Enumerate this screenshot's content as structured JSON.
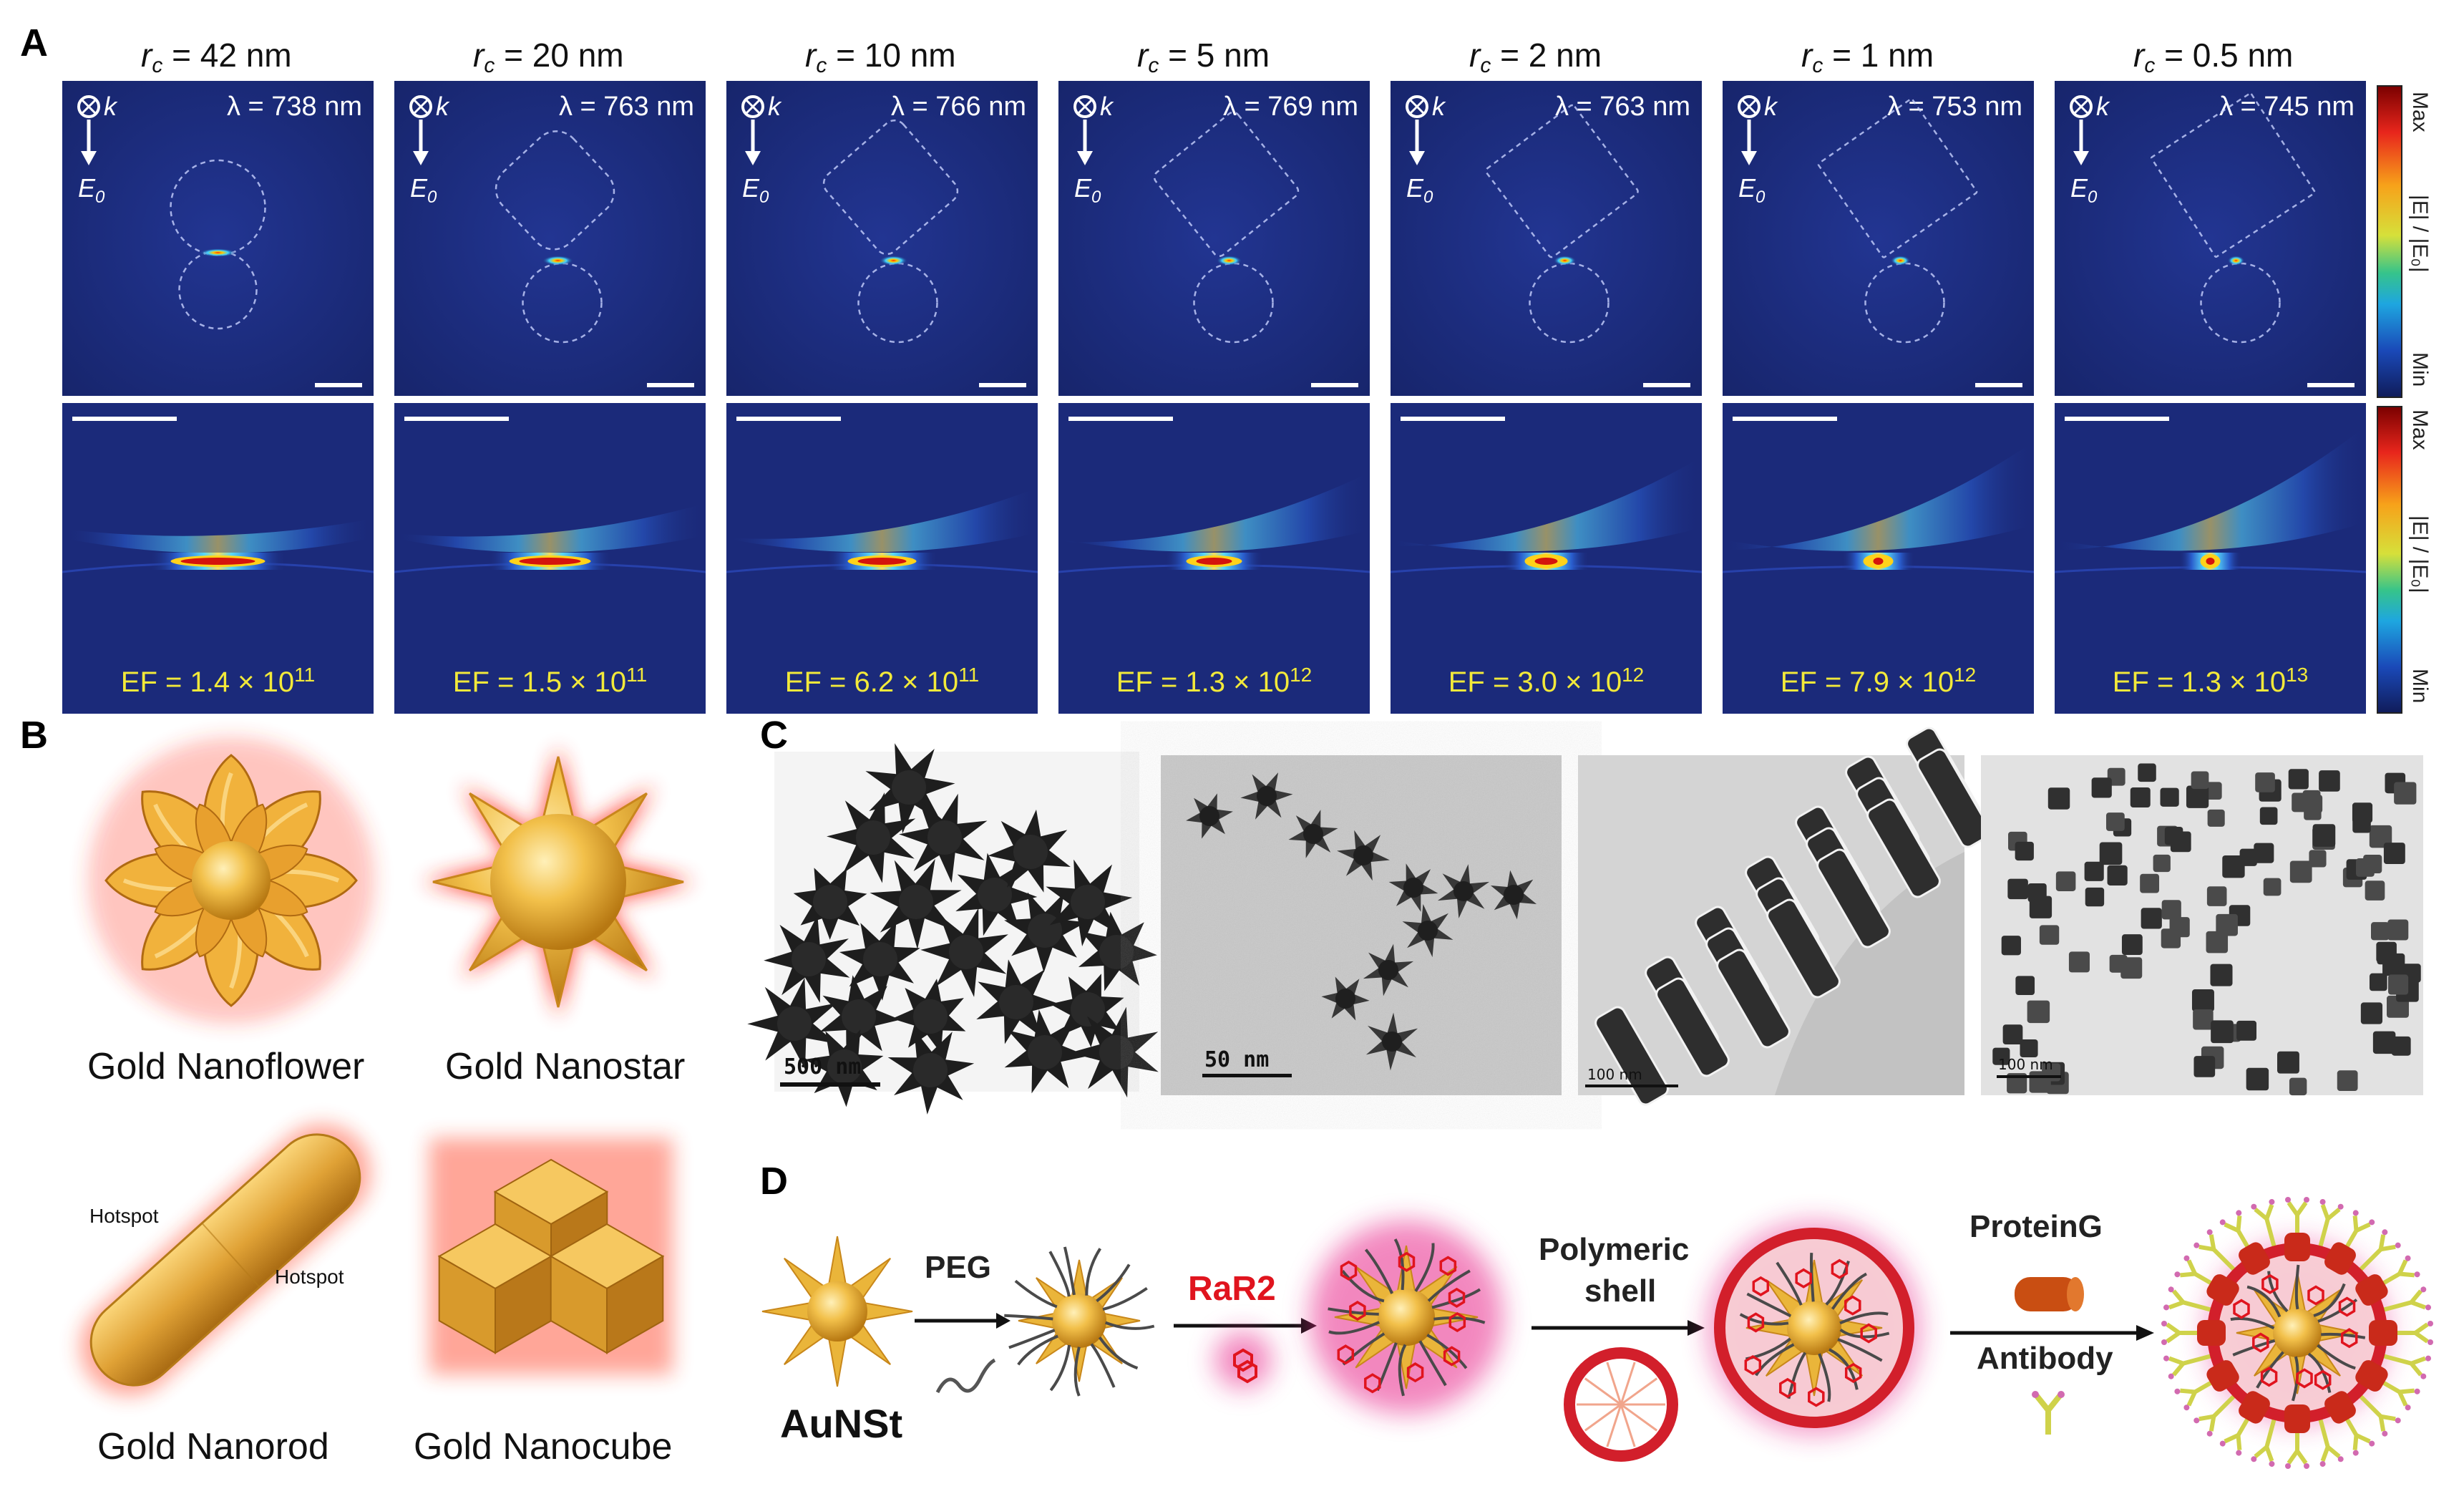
{
  "panels": {
    "a": "A",
    "b": "B",
    "c": "C",
    "d": "D"
  },
  "panel_a": {
    "columns": [
      {
        "rc_value": "= 42 nm",
        "wavelength": "λ = 738 nm",
        "ef_base": "EF = 1.4 × 10",
        "ef_exp": "11"
      },
      {
        "rc_value": "= 20 nm",
        "wavelength": "λ = 763 nm",
        "ef_base": "EF = 1.5 × 10",
        "ef_exp": "11"
      },
      {
        "rc_value": "= 10 nm",
        "wavelength": "λ = 766 nm",
        "ef_base": "EF = 6.2 × 10",
        "ef_exp": "11"
      },
      {
        "rc_value": "= 5 nm",
        "wavelength": "λ = 769 nm",
        "ef_base": "EF = 1.3 × 10",
        "ef_exp": "12"
      },
      {
        "rc_value": "= 2 nm",
        "wavelength": "λ = 763 nm",
        "ef_base": "EF = 3.0 × 10",
        "ef_exp": "12"
      },
      {
        "rc_value": "= 1 nm",
        "wavelength": "λ = 753 nm",
        "ef_base": "EF = 7.9 × 10",
        "ef_exp": "12"
      },
      {
        "rc_value": "= 0.5 nm",
        "wavelength": "λ = 745 nm",
        "ef_base": "EF = 1.3 × 10",
        "ef_exp": "13"
      }
    ],
    "rc_symbol": "r",
    "rc_sub": "c",
    "k_label": "k",
    "e0_label": "E",
    "e0_sub": "0",
    "colorbar": {
      "max": "Max",
      "min": "Min",
      "label": "|E| / |E₀|"
    }
  },
  "panel_b": {
    "flower": "Gold Nanoflower",
    "star": "Gold Nanostar",
    "rod": "Gold Nanorod",
    "cube": "Gold Nanocube",
    "hotspot": "Hotspot"
  },
  "panel_c": {
    "scale_1": "500 nm",
    "scale_2": "50 nm",
    "scale_3": "100 nm",
    "scale_4": "100 nm"
  },
  "panel_d": {
    "peg": "PEG",
    "rar2": "RaR2",
    "polymeric_1": "Polymeric",
    "polymeric_2": "shell",
    "proteing": "ProteinG",
    "antibody": "Antibody",
    "aunst": "AuNSt"
  },
  "colors": {
    "field_bg": "#1b2a7a",
    "gold": "#e8b33a",
    "red_glow": "#ff2a1a",
    "ef_text": "#f2e93a",
    "pink_glow": "#e8288a",
    "shell_red": "#d21f2b",
    "antibody": "#cfd24a"
  }
}
